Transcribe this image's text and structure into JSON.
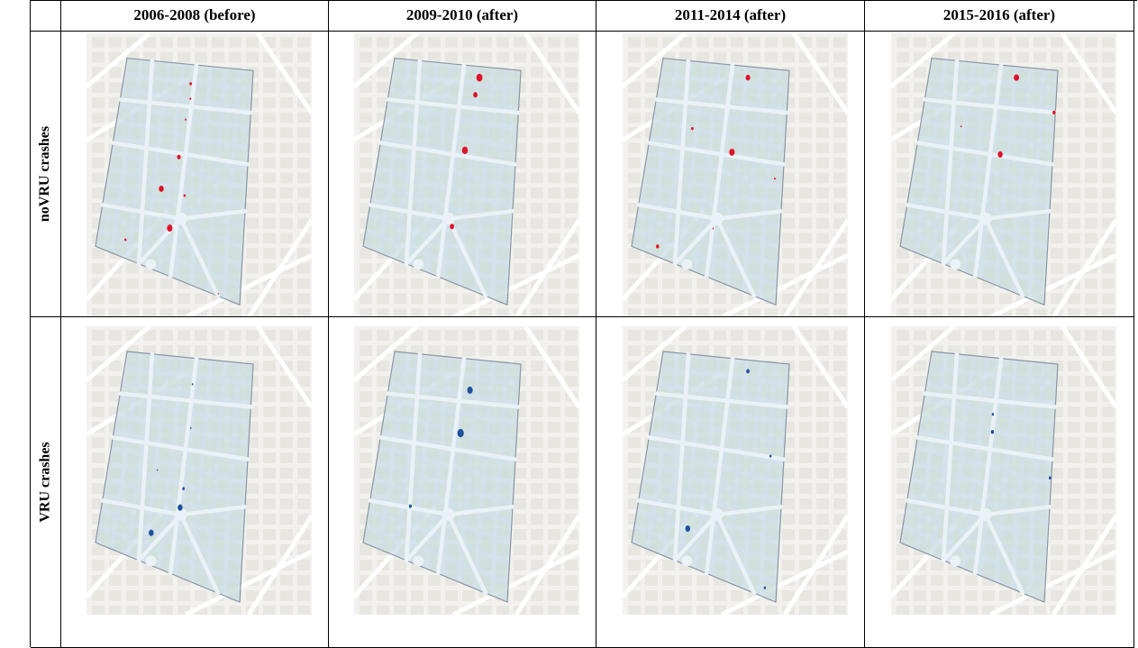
{
  "columns": [
    {
      "label": "2006-2008 (before)"
    },
    {
      "label": "2009-2010 (after)"
    },
    {
      "label": "2011-2014 (after)"
    },
    {
      "label": "2015-2016 (after)"
    }
  ],
  "rows": [
    {
      "label": "noVRU crashes"
    },
    {
      "label": "VRU crashes"
    }
  ],
  "colors": {
    "map_background": "#f2f1ee",
    "street": "#ffffff",
    "block": "#e7e6e1",
    "green_hatch": "#cfe0c4",
    "study_area_fill": "#c9dcea",
    "study_area_stroke": "#8a969e",
    "noVRU_hotspot": "#e0102a",
    "VRU_hotspot": "#1f4f9e"
  },
  "hotspots": {
    "noVRU": [
      [
        {
          "u": 0.52,
          "v": 0.09,
          "r": 1.6
        },
        {
          "u": 0.53,
          "v": 0.16,
          "r": 1.2
        },
        {
          "u": 0.51,
          "v": 0.26,
          "r": 1.1
        },
        {
          "u": 0.49,
          "v": 0.44,
          "r": 2.4
        },
        {
          "u": 0.39,
          "v": 0.61,
          "r": 3.2
        },
        {
          "u": 0.56,
          "v": 0.61,
          "r": 1.4
        },
        {
          "u": 0.48,
          "v": 0.78,
          "r": 3.6
        },
        {
          "u": 0.19,
          "v": 0.91,
          "r": 1.4
        },
        {
          "u": 0.85,
          "v": 0.99,
          "r": 0.8
        }
      ],
      [
        {
          "u": 0.68,
          "v": 0.05,
          "r": 4.0
        },
        {
          "u": 0.66,
          "v": 0.13,
          "r": 2.8
        },
        {
          "u": 0.62,
          "v": 0.39,
          "r": 3.8
        },
        {
          "u": 0.58,
          "v": 0.75,
          "r": 2.8
        }
      ],
      [
        {
          "u": 0.68,
          "v": 0.05,
          "r": 3.0
        },
        {
          "u": 0.3,
          "v": 0.33,
          "r": 1.6
        },
        {
          "u": 0.61,
          "v": 0.4,
          "r": 3.6
        },
        {
          "u": 0.94,
          "v": 0.47,
          "r": 1.1
        },
        {
          "u": 0.53,
          "v": 0.77,
          "r": 0.9
        },
        {
          "u": 0.17,
          "v": 0.95,
          "r": 2.0
        }
      ],
      [
        {
          "u": 0.68,
          "v": 0.05,
          "r": 3.4
        },
        {
          "u": 0.99,
          "v": 0.18,
          "r": 2.0
        },
        {
          "u": 0.3,
          "v": 0.32,
          "r": 0.9
        },
        {
          "u": 0.61,
          "v": 0.41,
          "r": 3.2
        }
      ]
    ],
    "VRU": [
      [
        {
          "u": 0.54,
          "v": 0.12,
          "r": 1.0
        },
        {
          "u": 0.56,
          "v": 0.32,
          "r": 0.9
        },
        {
          "u": 0.35,
          "v": 0.55,
          "r": 0.9
        },
        {
          "u": 0.55,
          "v": 0.6,
          "r": 1.6
        },
        {
          "u": 0.54,
          "v": 0.69,
          "r": 3.2
        },
        {
          "u": 0.36,
          "v": 0.85,
          "r": 3.2
        }
      ],
      [
        {
          "u": 0.62,
          "v": 0.14,
          "r": 3.6
        },
        {
          "u": 0.58,
          "v": 0.34,
          "r": 4.2
        },
        {
          "u": 0.28,
          "v": 0.74,
          "r": 1.8
        }
      ],
      [
        {
          "u": 0.68,
          "v": 0.05,
          "r": 2.2
        },
        {
          "u": 0.9,
          "v": 0.4,
          "r": 1.4
        },
        {
          "u": 0.36,
          "v": 0.83,
          "r": 3.2
        },
        {
          "u": 0.92,
          "v": 0.96,
          "r": 1.4
        }
      ],
      [
        {
          "u": 0.53,
          "v": 0.26,
          "r": 1.4
        },
        {
          "u": 0.54,
          "v": 0.34,
          "r": 2.0
        },
        {
          "u": 0.99,
          "v": 0.48,
          "r": 1.6
        }
      ]
    ]
  }
}
